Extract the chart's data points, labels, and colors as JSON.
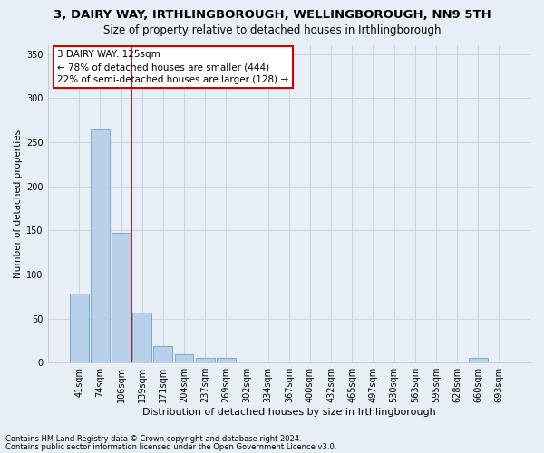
{
  "title": "3, DAIRY WAY, IRTHLINGBOROUGH, WELLINGBOROUGH, NN9 5TH",
  "subtitle": "Size of property relative to detached houses in Irthlingborough",
  "xlabel": "Distribution of detached houses by size in Irthlingborough",
  "ylabel": "Number of detached properties",
  "footer1": "Contains HM Land Registry data © Crown copyright and database right 2024.",
  "footer2": "Contains public sector information licensed under the Open Government Licence v3.0.",
  "categories": [
    "41sqm",
    "74sqm",
    "106sqm",
    "139sqm",
    "171sqm",
    "204sqm",
    "237sqm",
    "269sqm",
    "302sqm",
    "334sqm",
    "367sqm",
    "400sqm",
    "432sqm",
    "465sqm",
    "497sqm",
    "530sqm",
    "563sqm",
    "595sqm",
    "628sqm",
    "660sqm",
    "693sqm"
  ],
  "values": [
    78,
    265,
    147,
    57,
    19,
    9,
    5,
    5,
    0,
    0,
    0,
    0,
    0,
    0,
    0,
    0,
    0,
    0,
    0,
    5,
    0
  ],
  "bar_color": "#b8d0ea",
  "bar_edge_color": "#6aa0cc",
  "grid_color": "#c8d4e4",
  "background_color": "#e8eef6",
  "vline_x_pos": 2.5,
  "vline_color": "#990000",
  "annotation_text": "3 DAIRY WAY: 125sqm\n← 78% of detached houses are smaller (444)\n22% of semi-detached houses are larger (128) →",
  "annotation_box_color": "#ffffff",
  "annotation_border_color": "#cc0000",
  "ylim": [
    0,
    360
  ],
  "yticks": [
    0,
    50,
    100,
    150,
    200,
    250,
    300,
    350
  ],
  "title_fontsize": 9.5,
  "subtitle_fontsize": 8.5,
  "xlabel_fontsize": 8,
  "ylabel_fontsize": 7.5,
  "tick_fontsize": 7,
  "annotation_fontsize": 7.5,
  "footer_fontsize": 6
}
